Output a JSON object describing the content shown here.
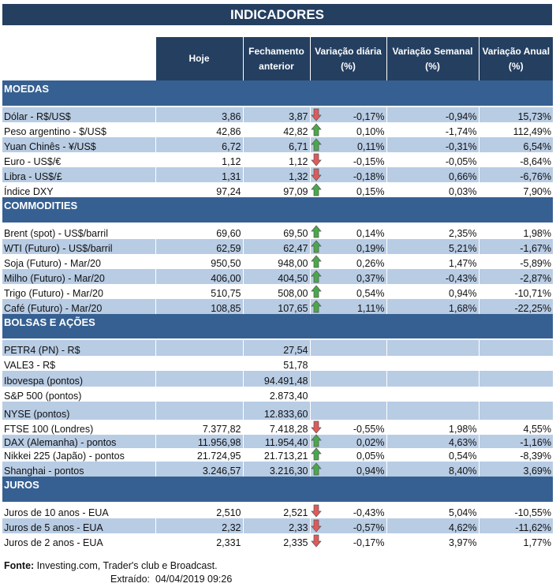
{
  "title": "INDICADORES",
  "headers": [
    "Hoje",
    "Fechamento anterior",
    "Variação diária (%)",
    "Variação Semanal (%)",
    "Variação Anual (%)"
  ],
  "colors": {
    "header": "#243f60",
    "section": "#366092",
    "band": "#b8cce4",
    "up": "#4aa84a",
    "down": "#e05a5a"
  },
  "sections": [
    {
      "name": "MOEDAS",
      "rows": [
        {
          "label": "Dólar - R$/US$",
          "hoje": "3,86",
          "fech": "3,87",
          "arrow": "down",
          "dia": "-0,17%",
          "sem": "-0,94%",
          "ano": "15,73%"
        },
        {
          "label": "Peso argentino - $/US$",
          "hoje": "42,86",
          "fech": "42,82",
          "arrow": "up",
          "dia": "0,10%",
          "sem": "-1,74%",
          "ano": "112,49%"
        },
        {
          "label": "Yuan Chinês - ¥/US$",
          "hoje": "6,72",
          "fech": "6,71",
          "arrow": "up",
          "dia": "0,11%",
          "sem": "-0,31%",
          "ano": "6,54%"
        },
        {
          "label": "Euro - US$/€",
          "hoje": "1,12",
          "fech": "1,12",
          "arrow": "down",
          "dia": "-0,15%",
          "sem": "-0,05%",
          "ano": "-8,64%"
        },
        {
          "label": "Libra - US$/£",
          "hoje": "1,31",
          "fech": "1,32",
          "arrow": "down",
          "dia": "-0,18%",
          "sem": "0,66%",
          "ano": "-6,76%"
        },
        {
          "label": "Índice DXY",
          "hoje": "97,24",
          "fech": "97,09",
          "arrow": "up",
          "dia": "0,15%",
          "sem": "0,03%",
          "ano": "7,90%"
        }
      ]
    },
    {
      "name": "COMMODITIES",
      "rows": [
        {
          "label": "Brent (spot) - US$/barril",
          "hoje": "69,60",
          "fech": "69,50",
          "arrow": "up",
          "dia": "0,14%",
          "sem": "2,35%",
          "ano": "1,98%"
        },
        {
          "label": "WTI (Futuro) - US$/barril",
          "hoje": "62,59",
          "fech": "62,47",
          "arrow": "up",
          "dia": "0,19%",
          "sem": "5,21%",
          "ano": "-1,67%"
        },
        {
          "label": "Soja (Futuro) - Mar/20",
          "hoje": "950,50",
          "fech": "948,00",
          "arrow": "up",
          "dia": "0,26%",
          "sem": "1,47%",
          "ano": "-5,89%"
        },
        {
          "label": "Milho (Futuro) - Mar/20",
          "hoje": "406,00",
          "fech": "404,50",
          "arrow": "up",
          "dia": "0,37%",
          "sem": "-0,43%",
          "ano": "-2,87%"
        },
        {
          "label": "Trigo (Futuro) - Mar/20",
          "hoje": "510,75",
          "fech": "508,00",
          "arrow": "up",
          "dia": "0,54%",
          "sem": "0,94%",
          "ano": "-10,71%"
        },
        {
          "label": "Café (Futuro) - Mar/20",
          "hoje": "108,85",
          "fech": "107,65",
          "arrow": "up",
          "dia": "1,11%",
          "sem": "1,68%",
          "ano": "-22,25%"
        }
      ]
    },
    {
      "name": "BOLSAS E AÇÕES",
      "rows": [
        {
          "label": "PETR4 (PN) - R$",
          "hoje": "",
          "fech": "27,54",
          "arrow": "",
          "dia": "",
          "sem": "",
          "ano": ""
        },
        {
          "label": "VALE3 - R$",
          "hoje": "",
          "fech": "51,78",
          "arrow": "",
          "dia": "",
          "sem": "",
          "ano": ""
        },
        {
          "label": "Ibovespa (pontos)",
          "hoje": "",
          "fech": "94.491,48",
          "arrow": "",
          "dia": "",
          "sem": "",
          "ano": ""
        },
        {
          "label": "S&P 500 (pontos)",
          "hoje": "",
          "fech": "2.873,40",
          "arrow": "",
          "dia": "",
          "sem": "",
          "ano": ""
        },
        {
          "label": "NYSE (pontos)",
          "hoje": "",
          "fech": "12.833,60",
          "arrow": "",
          "dia": "",
          "sem": "",
          "ano": ""
        },
        {
          "label": "FTSE 100 (Londres)",
          "hoje": "7.377,82",
          "fech": "7.418,28",
          "arrow": "down",
          "dia": "-0,55%",
          "sem": "1,98%",
          "ano": "4,55%"
        },
        {
          "label": "DAX (Alemanha) - pontos",
          "hoje": "11.956,98",
          "fech": "11.954,40",
          "arrow": "up",
          "dia": "0,02%",
          "sem": "4,63%",
          "ano": "-1,16%"
        },
        {
          "label": "Nikkei 225 (Japão) - pontos",
          "hoje": "21.724,95",
          "fech": "21.713,21",
          "arrow": "up",
          "dia": "0,05%",
          "sem": "0,54%",
          "ano": "-8,39%"
        },
        {
          "label": "Shanghai - pontos",
          "hoje": "3.246,57",
          "fech": "3.216,30",
          "arrow": "up",
          "dia": "0,94%",
          "sem": "8,40%",
          "ano": "3,69%"
        }
      ]
    },
    {
      "name": "JUROS",
      "rows": [
        {
          "label": "Juros de 10 anos - EUA",
          "hoje": "2,510",
          "fech": "2,521",
          "arrow": "down",
          "dia": "-0,43%",
          "sem": "5,04%",
          "ano": "-10,55%"
        },
        {
          "label": "Juros de 5 anos - EUA",
          "hoje": "2,32",
          "fech": "2,33",
          "arrow": "down",
          "dia": "-0,57%",
          "sem": "4,62%",
          "ano": "-11,62%"
        },
        {
          "label": "Juros de 2 anos - EUA",
          "hoje": "2,331",
          "fech": "2,335",
          "arrow": "down",
          "dia": "-0,17%",
          "sem": "3,97%",
          "ano": "1,77%"
        }
      ]
    }
  ],
  "footer": {
    "source_label": "Fonte:",
    "source": "Investing.com, Trader's club e Broadcast.",
    "extracted_label": "Extraído:",
    "extracted": "04/04/2019 09:26"
  }
}
